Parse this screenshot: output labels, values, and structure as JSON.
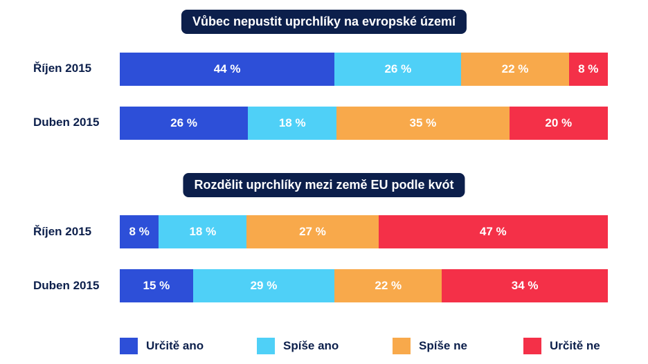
{
  "colors": {
    "urcite_ano": "#2d4fd8",
    "spise_ano": "#4fd0f7",
    "spise_ne": "#f8a94b",
    "urcite_ne": "#f43048"
  },
  "legend": [
    "Určitě ano",
    "Spíše ano",
    "Spíše ne",
    "Určitě ne"
  ],
  "chart_data": [
    {
      "type": "bar",
      "stacked": true,
      "orientation": "horizontal",
      "title": "Vůbec nepustit uprchlíky na evropské území",
      "categories": [
        "Říjen 2015",
        "Duben 2015"
      ],
      "series": [
        {
          "name": "Určitě ano",
          "values": [
            44,
            26
          ]
        },
        {
          "name": "Spíše ano",
          "values": [
            26,
            18
          ]
        },
        {
          "name": "Spíše ne",
          "values": [
            22,
            35
          ]
        },
        {
          "name": "Určitě ne",
          "values": [
            8,
            20
          ]
        }
      ],
      "labels": [
        [
          "44 %",
          "26 %",
          "22 %",
          "8 %"
        ],
        [
          "26 %",
          "18 %",
          "35 %",
          "20 %"
        ]
      ]
    },
    {
      "type": "bar",
      "stacked": true,
      "orientation": "horizontal",
      "title": "Rozdělit uprchlíky mezi země EU podle kvót",
      "categories": [
        "Říjen 2015",
        "Duben 2015"
      ],
      "series": [
        {
          "name": "Určitě ano",
          "values": [
            8,
            15
          ]
        },
        {
          "name": "Spíše ano",
          "values": [
            18,
            29
          ]
        },
        {
          "name": "Spíše ne",
          "values": [
            27,
            22
          ]
        },
        {
          "name": "Určitě ne",
          "values": [
            47,
            34
          ]
        }
      ],
      "labels": [
        [
          "8 %",
          "18 %",
          "27 %",
          "47 %"
        ],
        [
          "15 %",
          "29 %",
          "22 %",
          "34 %"
        ]
      ]
    }
  ]
}
